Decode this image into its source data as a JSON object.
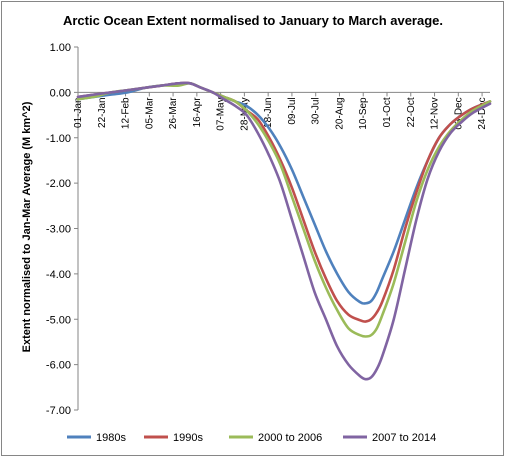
{
  "chart_data": {
    "type": "line",
    "title": "Arctic Ocean Extent normalised to January to March average.",
    "xlabel": "",
    "ylabel": "Extent normalised to Jan-Mar Average (M km^2)",
    "ylim": [
      -7.0,
      1.0
    ],
    "yticks": [
      "1.00",
      "0.00",
      "-1.00",
      "-2.00",
      "-3.00",
      "-4.00",
      "-5.00",
      "-6.00",
      "-7.00"
    ],
    "xlim_day_of_year": [
      1,
      365
    ],
    "xtick_labels": [
      "01-Jan",
      "22-Jan",
      "12-Feb",
      "05-Mar",
      "26-Mar",
      "16-Apr",
      "07-May",
      "28-May",
      "18-Jun",
      "09-Jul",
      "30-Jul",
      "20-Aug",
      "10-Sep",
      "01-Oct",
      "22-Oct",
      "12-Nov",
      "03-Dec",
      "24-Dec"
    ],
    "xtick_days": [
      1,
      22,
      43,
      64,
      85,
      106,
      127,
      148,
      169,
      190,
      211,
      232,
      253,
      274,
      295,
      316,
      337,
      358
    ],
    "grid": false,
    "legend_position": "bottom",
    "series": [
      {
        "name": "1980s",
        "color": "#4f81bd",
        "x": [
          1,
          15,
          30,
          45,
          60,
          75,
          90,
          100,
          110,
          120,
          130,
          140,
          150,
          160,
          170,
          180,
          190,
          200,
          210,
          220,
          230,
          240,
          250,
          255,
          260,
          265,
          270,
          280,
          290,
          300,
          310,
          320,
          330,
          340,
          350,
          365
        ],
        "y": [
          -0.15,
          -0.1,
          -0.05,
          0.0,
          0.1,
          0.15,
          0.2,
          0.2,
          0.1,
          0.0,
          -0.1,
          -0.2,
          -0.3,
          -0.5,
          -0.8,
          -1.2,
          -1.7,
          -2.3,
          -2.9,
          -3.5,
          -4.0,
          -4.4,
          -4.62,
          -4.65,
          -4.6,
          -4.4,
          -4.1,
          -3.5,
          -2.8,
          -2.1,
          -1.5,
          -1.0,
          -0.7,
          -0.5,
          -0.35,
          -0.2
        ]
      },
      {
        "name": "1990s",
        "color": "#c0504d",
        "x": [
          1,
          15,
          30,
          45,
          60,
          75,
          90,
          100,
          110,
          120,
          130,
          140,
          150,
          160,
          170,
          180,
          190,
          200,
          210,
          220,
          230,
          240,
          250,
          255,
          260,
          265,
          270,
          280,
          290,
          300,
          310,
          320,
          330,
          340,
          350,
          365
        ],
        "y": [
          -0.1,
          -0.05,
          0.0,
          0.05,
          0.1,
          0.15,
          0.2,
          0.2,
          0.1,
          0.0,
          -0.1,
          -0.2,
          -0.4,
          -0.6,
          -1.0,
          -1.5,
          -2.1,
          -2.8,
          -3.5,
          -4.1,
          -4.6,
          -4.9,
          -5.02,
          -5.05,
          -5.0,
          -4.85,
          -4.6,
          -3.9,
          -3.0,
          -2.2,
          -1.5,
          -1.0,
          -0.7,
          -0.5,
          -0.35,
          -0.2
        ]
      },
      {
        "name": "2000 to 2006",
        "color": "#9bbb59",
        "x": [
          1,
          15,
          30,
          45,
          60,
          75,
          90,
          100,
          110,
          120,
          130,
          140,
          150,
          160,
          170,
          180,
          190,
          200,
          210,
          220,
          230,
          240,
          250,
          255,
          260,
          265,
          270,
          280,
          290,
          300,
          310,
          320,
          330,
          340,
          350,
          365
        ],
        "y": [
          -0.15,
          -0.1,
          0.0,
          0.05,
          0.1,
          0.15,
          0.15,
          0.2,
          0.1,
          0.0,
          -0.1,
          -0.2,
          -0.4,
          -0.7,
          -1.1,
          -1.6,
          -2.3,
          -3.0,
          -3.7,
          -4.3,
          -4.8,
          -5.2,
          -5.35,
          -5.38,
          -5.35,
          -5.2,
          -4.9,
          -4.2,
          -3.3,
          -2.4,
          -1.7,
          -1.2,
          -0.85,
          -0.6,
          -0.4,
          -0.2
        ]
      },
      {
        "name": "2007 to 2014",
        "color": "#8064a2",
        "x": [
          1,
          15,
          30,
          45,
          60,
          75,
          90,
          100,
          110,
          120,
          130,
          140,
          150,
          160,
          170,
          180,
          190,
          200,
          210,
          220,
          230,
          240,
          250,
          255,
          260,
          265,
          270,
          280,
          290,
          300,
          310,
          320,
          330,
          340,
          350,
          365
        ],
        "y": [
          -0.1,
          -0.05,
          0.0,
          0.05,
          0.1,
          0.15,
          0.2,
          0.2,
          0.1,
          0.0,
          -0.15,
          -0.3,
          -0.5,
          -0.9,
          -1.4,
          -2.0,
          -2.8,
          -3.6,
          -4.4,
          -5.0,
          -5.6,
          -6.0,
          -6.25,
          -6.32,
          -6.28,
          -6.1,
          -5.8,
          -5.0,
          -3.9,
          -2.8,
          -1.9,
          -1.3,
          -0.9,
          -0.65,
          -0.45,
          -0.25
        ]
      }
    ]
  }
}
